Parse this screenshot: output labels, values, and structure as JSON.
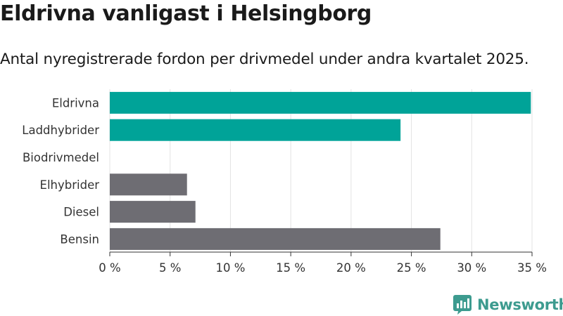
{
  "title": "Eldrivna vanligast i Helsingborg",
  "subtitle": "Antal nyregistrerade fordon per drivmedel under andra kvartalet 2025.",
  "brand": {
    "name": "Newsworthy",
    "color": "#3d9b8f"
  },
  "chart_data": {
    "type": "bar",
    "orientation": "horizontal",
    "categories": [
      "Eldrivna",
      "Laddhybrider",
      "Biodrivmedel",
      "Elhybrider",
      "Diesel",
      "Bensin"
    ],
    "values": [
      34.9,
      24.1,
      0,
      6.4,
      7.1,
      27.4
    ],
    "colors": [
      "#00a398",
      "#00a398",
      "#00a398",
      "#6e6d73",
      "#6e6d73",
      "#6e6d73"
    ],
    "xticks": [
      "0 %",
      "5 %",
      "10 %",
      "15 %",
      "20 %",
      "25 %",
      "30 %",
      "35 %"
    ],
    "xlim": [
      0,
      35
    ],
    "grid": true
  }
}
